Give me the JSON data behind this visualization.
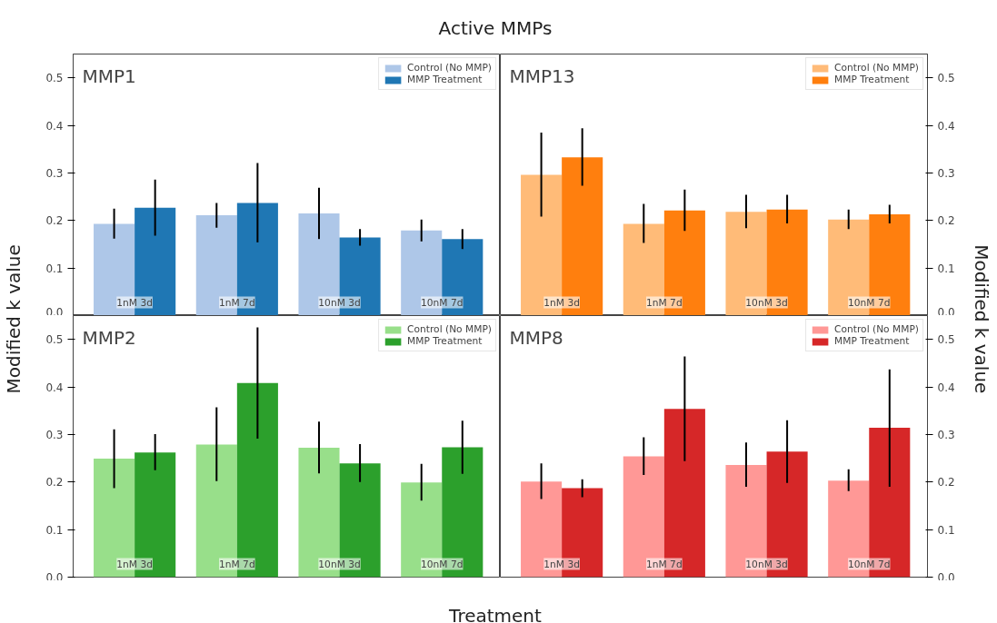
{
  "chart_data": [
    {
      "type": "bar",
      "title": "MMP1",
      "annotations": [
        "Active MMPs"
      ],
      "ylabel": "Modified k value",
      "categories": [
        "1nM 3d",
        "1nM 7d",
        "10nM 3d",
        "10nM 7d"
      ],
      "ylim": [
        0,
        0.55
      ],
      "yticks": [
        {
          "value": 0,
          "label": "0.0"
        },
        0.1,
        0.2,
        0.3,
        0.4,
        0.5
      ],
      "grid": false,
      "legend": "top right",
      "series": [
        {
          "name": "Control (No MMP)",
          "color": "#aec7e8",
          "values": [
            0.193,
            0.211,
            0.215,
            0.179
          ],
          "errors": [
            [
              0.162,
              0.225
            ],
            [
              0.185,
              0.237
            ],
            [
              0.161,
              0.269
            ],
            [
              0.156,
              0.202
            ]
          ]
        },
        {
          "name": "MMP Treatment",
          "color": "#1f77b4",
          "values": [
            0.227,
            0.237,
            0.164,
            0.161
          ],
          "errors": [
            [
              0.168,
              0.286
            ],
            [
              0.154,
              0.321
            ],
            [
              0.147,
              0.182
            ],
            [
              0.14,
              0.182
            ]
          ]
        }
      ]
    },
    {
      "type": "bar",
      "title": "MMP13",
      "y2label": "Modified k value",
      "categories": [
        "1nM 3d",
        "1nM 7d",
        "10nM 3d",
        "10nM 7d"
      ],
      "y2lim": [
        0,
        0.55
      ],
      "y2ticks": [
        {
          "value": 0,
          "label": "0.0"
        },
        0.1,
        0.2,
        0.3,
        0.4,
        0.5
      ],
      "grid": false,
      "legend": "top right",
      "series": [
        {
          "name": "Control (No MMP)",
          "color": "#ffbb78",
          "axis": "y2",
          "values": [
            0.296,
            0.193,
            0.218,
            0.202
          ],
          "errors": [
            [
              0.208,
              0.385
            ],
            [
              0.153,
              0.235
            ],
            [
              0.184,
              0.254
            ],
            [
              0.182,
              0.223
            ]
          ]
        },
        {
          "name": "MMP Treatment",
          "color": "#ff7f0e",
          "axis": "y2",
          "values": [
            0.333,
            0.221,
            0.223,
            0.213
          ],
          "errors": [
            [
              0.273,
              0.394
            ],
            [
              0.178,
              0.265
            ],
            [
              0.194,
              0.254
            ],
            [
              0.194,
              0.233
            ]
          ]
        }
      ]
    },
    {
      "type": "bar",
      "title": "MMP2",
      "xlabel": "Treatment",
      "categories": [
        "1nM 3d",
        "1nM 7d",
        "10nM 3d",
        "10nM 7d"
      ],
      "ylim": [
        0,
        0.55
      ],
      "yticks": [
        {
          "value": 0,
          "label": "0.0"
        },
        0.1,
        0.2,
        0.3,
        0.4,
        0.5
      ],
      "grid": false,
      "legend": "top right",
      "series": [
        {
          "name": "Control (No MMP)",
          "color": "#98df8a",
          "values": [
            0.249,
            0.279,
            0.272,
            0.199
          ],
          "errors": [
            [
              0.187,
              0.311
            ],
            [
              0.202,
              0.357
            ],
            [
              0.218,
              0.327
            ],
            [
              0.161,
              0.238
            ]
          ]
        },
        {
          "name": "MMP Treatment",
          "color": "#2ca02c",
          "values": [
            0.262,
            0.408,
            0.239,
            0.273
          ],
          "errors": [
            [
              0.225,
              0.301
            ],
            [
              0.291,
              0.525
            ],
            [
              0.2,
              0.28
            ],
            [
              0.217,
              0.329
            ]
          ]
        }
      ]
    },
    {
      "type": "bar",
      "title": "MMP8",
      "categories": [
        "1nM 3d",
        "1nM 7d",
        "10nM 3d",
        "10nM 7d"
      ],
      "y2lim": [
        0,
        0.55
      ],
      "y2ticks": [
        {
          "value": 0,
          "label": "0.0"
        },
        0.1,
        0.2,
        0.3,
        0.4,
        0.5
      ],
      "grid": false,
      "legend": "top right",
      "series": [
        {
          "name": "Control (No MMP)",
          "color": "#ff9896",
          "axis": "y2",
          "values": [
            0.201,
            0.254,
            0.236,
            0.203
          ],
          "errors": [
            [
              0.164,
              0.239
            ],
            [
              0.215,
              0.294
            ],
            [
              0.19,
              0.283
            ],
            [
              0.181,
              0.227
            ]
          ]
        },
        {
          "name": "MMP Treatment",
          "color": "#d62728",
          "axis": "y2",
          "values": [
            0.187,
            0.354,
            0.264,
            0.314
          ],
          "errors": [
            [
              0.168,
              0.206
            ],
            [
              0.244,
              0.464
            ],
            [
              0.198,
              0.33
            ],
            [
              0.19,
              0.437
            ]
          ]
        }
      ]
    }
  ]
}
